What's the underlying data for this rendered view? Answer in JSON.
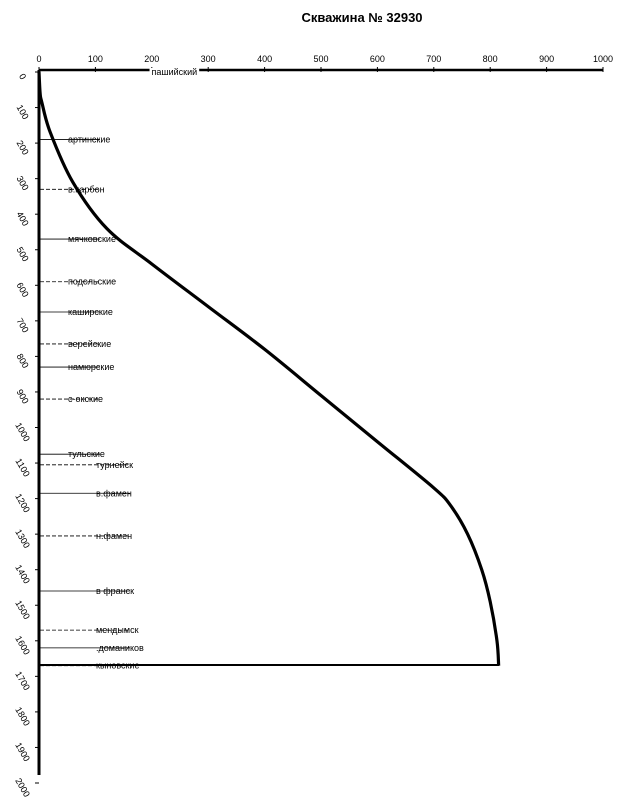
{
  "chart_data": {
    "type": "line",
    "title": "Скважина № 32930",
    "xlabel": "",
    "ylabel": "",
    "xlim": [
      0,
      1000
    ],
    "ylim": [
      0,
      2000
    ],
    "x_axis_position": "top",
    "y_inverted": true,
    "grid": false,
    "x_ticks": [
      "0",
      "100",
      "200",
      "300",
      "400",
      "500",
      "600",
      "700",
      "800",
      "900",
      "1000"
    ],
    "y_ticks": [
      "0",
      "100",
      "200",
      "300",
      "400",
      "500",
      "600",
      "700",
      "800",
      "900",
      "1000",
      "1100",
      "1200",
      "1300",
      "1400",
      "1500",
      "1600",
      "1700",
      "1800",
      "1900",
      "2000"
    ],
    "series": [
      {
        "points": [
          [
            0,
            0
          ],
          [
            2,
            60
          ],
          [
            5,
            85
          ],
          [
            20,
            170
          ],
          [
            60,
            310
          ],
          [
            120,
            440
          ],
          [
            200,
            540
          ],
          [
            300,
            660
          ],
          [
            400,
            780
          ],
          [
            500,
            910
          ],
          [
            600,
            1040
          ],
          [
            700,
            1170
          ],
          [
            730,
            1220
          ],
          [
            760,
            1300
          ],
          [
            785,
            1400
          ],
          [
            800,
            1490
          ],
          [
            812,
            1600
          ],
          [
            815,
            1670
          ]
        ]
      }
    ],
    "formation_tops": [
      {
        "name": "пашийский",
        "depth": 0,
        "x": 240
      },
      {
        "name": "артинские",
        "depth": 190
      },
      {
        "name": "в.карбон",
        "depth": 330
      },
      {
        "name": "мячковские",
        "depth": 470
      },
      {
        "name": "подольские",
        "depth": 590
      },
      {
        "name": "каширские",
        "depth": 675
      },
      {
        "name": "верейские",
        "depth": 765
      },
      {
        "name": "намюрские",
        "depth": 830
      },
      {
        "name": "с-окские",
        "depth": 920
      },
      {
        "name": "тульские",
        "depth": 1075
      },
      {
        "name": "турнейск",
        "depth": 1105
      },
      {
        "name": "в.фамен",
        "depth": 1185
      },
      {
        "name": "н.фамен",
        "depth": 1305
      },
      {
        "name": "в франск",
        "depth": 1460
      },
      {
        "name": "мендымск",
        "depth": 1570
      },
      {
        "name": ".домаников",
        "depth": 1620
      },
      {
        "name": "кыновские",
        "depth": 1670
      }
    ]
  }
}
